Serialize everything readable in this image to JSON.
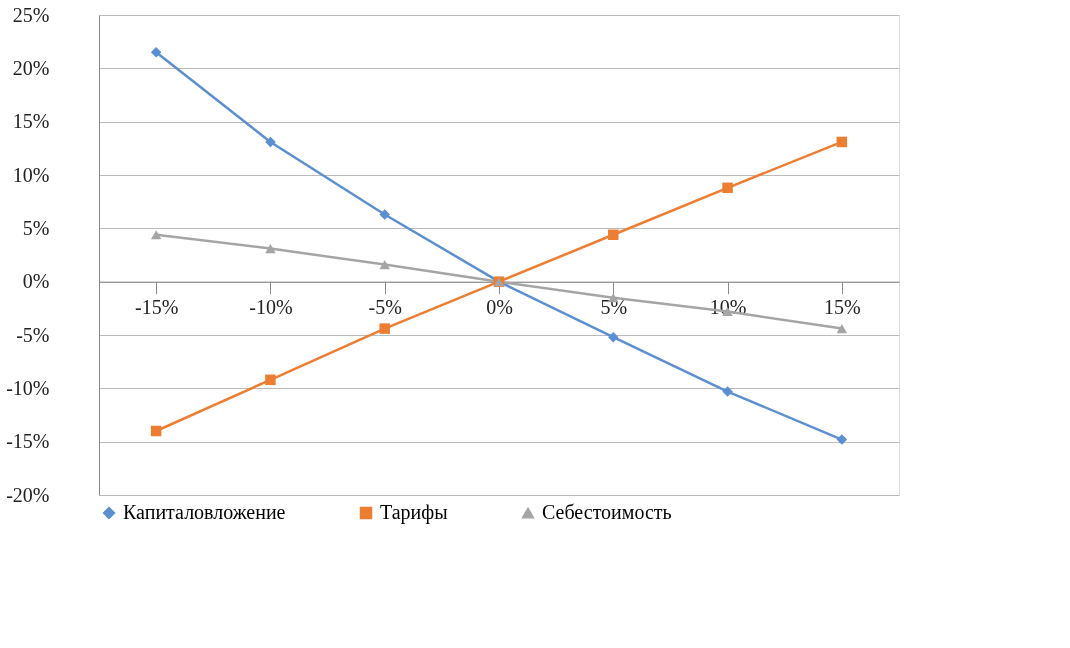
{
  "chart_data": {
    "type": "line",
    "categories": [
      "-15%",
      "-10%",
      "-5%",
      "0%",
      "5%",
      "10%",
      "15%"
    ],
    "series": [
      {
        "name": "Капиталовложение",
        "color": "#5b8fcf",
        "marker": "diamond",
        "values": [
          21.5,
          13.1,
          6.3,
          0,
          -5.2,
          -10.3,
          -14.8
        ]
      },
      {
        "name": "Тарифы",
        "color": "#ed7d31",
        "marker": "square",
        "values": [
          -14.0,
          -9.2,
          -4.4,
          0,
          4.4,
          8.8,
          13.1
        ]
      },
      {
        "name": "Себестоимость",
        "color": "#a5a5a5",
        "marker": "triangle",
        "values": [
          4.4,
          3.1,
          1.6,
          0,
          -1.5,
          -2.8,
          -4.4
        ]
      }
    ],
    "ylim": [
      -20,
      25
    ],
    "yticks": [
      {
        "value": -20,
        "label": "-20%"
      },
      {
        "value": -15,
        "label": "-15%"
      },
      {
        "value": -10,
        "label": "-10%"
      },
      {
        "value": -5,
        "label": "-5%"
      },
      {
        "value": 0,
        "label": "0%"
      },
      {
        "value": 5,
        "label": "5%"
      },
      {
        "value": 10,
        "label": "10%"
      },
      {
        "value": 15,
        "label": "15%"
      },
      {
        "value": 20,
        "label": "20%"
      },
      {
        "value": 25,
        "label": "25%"
      }
    ],
    "grid": "y",
    "legend": "bottom",
    "line_style": "solid"
  }
}
